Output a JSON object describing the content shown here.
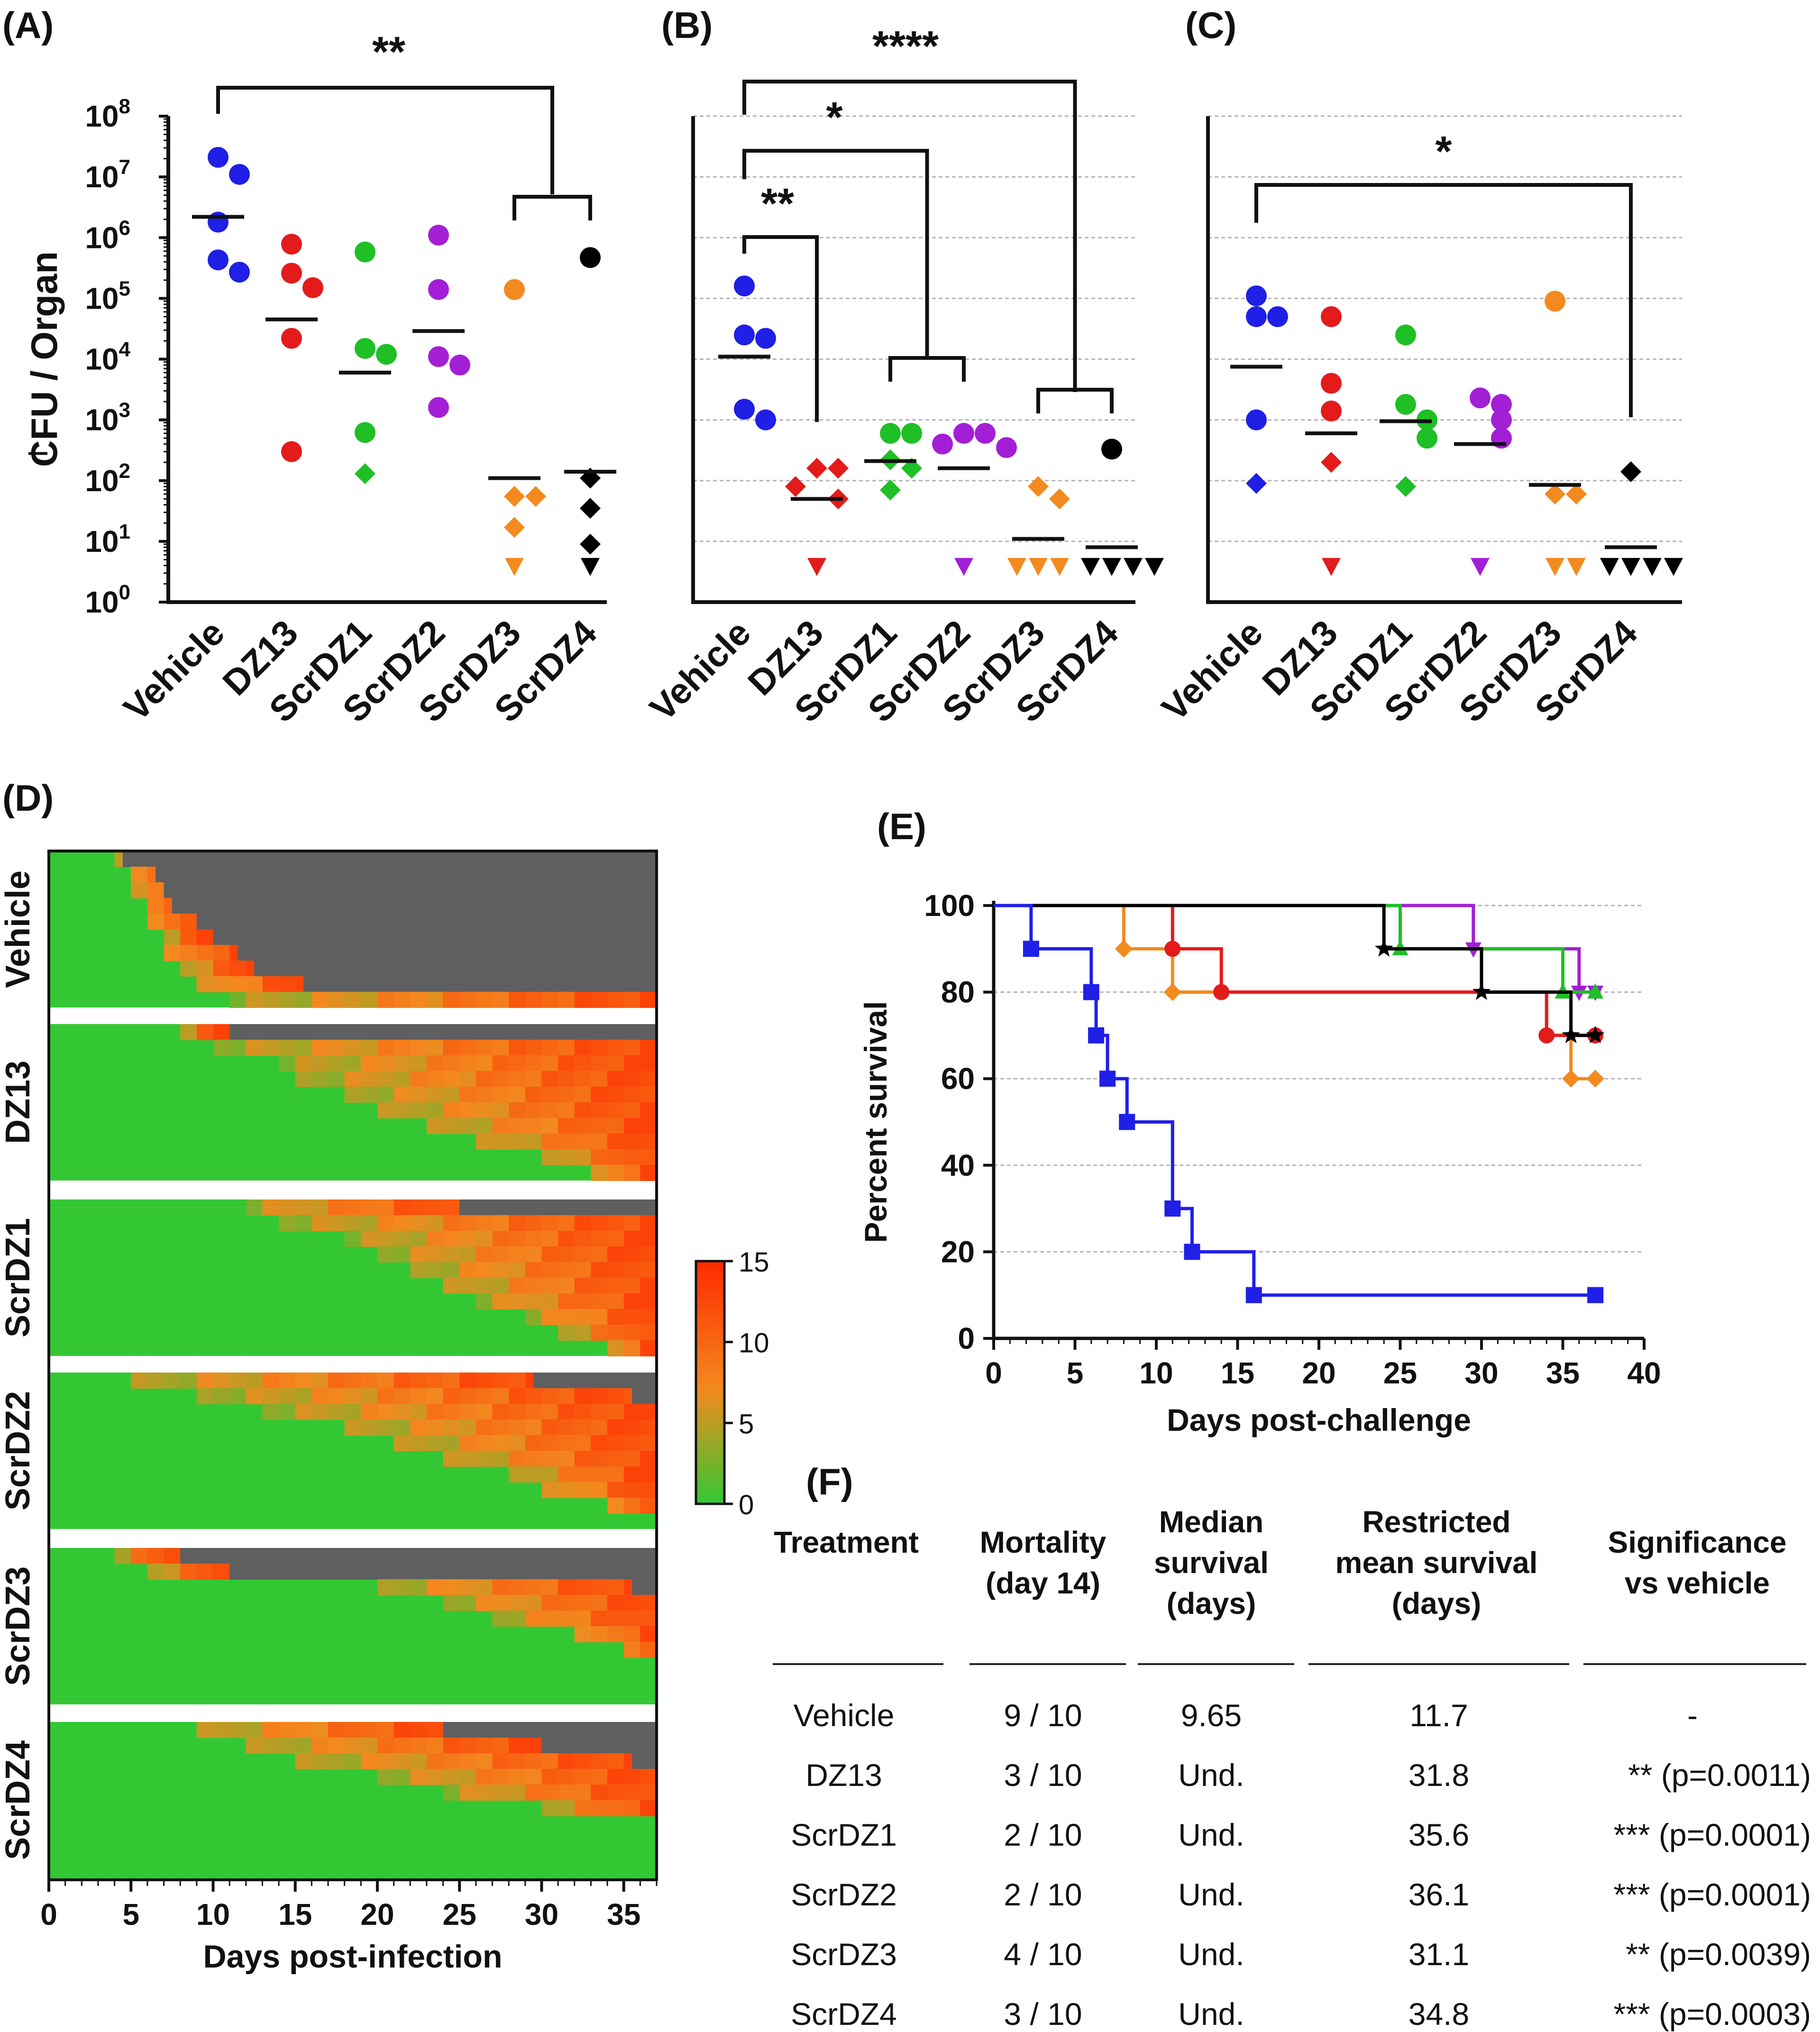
{
  "panel_labels": {
    "a": "(A)",
    "b": "(B)",
    "c": "(C)",
    "d": "(D)",
    "e": "(E)",
    "f": "(F)"
  },
  "colors": {
    "Vehicle": "#1f1fe6",
    "DZ13": "#e31b1b",
    "ScrDZ1": "#1fbf26",
    "ScrDZ2": "#a31fd6",
    "ScrDZ3": "#f28a1f",
    "ScrDZ4": "#000000",
    "heat_low": "#33c833",
    "heat_mid": "#f28a1f",
    "heat_high": "#ff2a00",
    "heat_dead": "#5f5f5f"
  },
  "chart_data": [
    {
      "id": "A",
      "type": "scatter",
      "yscale": "log",
      "ylabel": "CFU / Organ",
      "ylim": [
        1,
        100000000
      ],
      "yticks": [
        "10^0",
        "10^1",
        "10^2",
        "10^3",
        "10^4",
        "10^5",
        "10^6",
        "10^7",
        "10^8"
      ],
      "lod": 280,
      "categories": [
        "Vehicle",
        "DZ13",
        "ScrDZ1",
        "ScrDZ2",
        "ScrDZ3",
        "ScrDZ4"
      ],
      "groups": [
        {
          "name": "Vehicle",
          "mean": 2200000,
          "points": [
            {
              "v": 21000000,
              "m": "circle"
            },
            {
              "v": 11000000,
              "m": "circle"
            },
            {
              "v": 1800000,
              "m": "circle"
            },
            {
              "v": 430000,
              "m": "circle"
            },
            {
              "v": 270000,
              "m": "circle"
            }
          ]
        },
        {
          "name": "DZ13",
          "mean": 45000,
          "points": [
            {
              "v": 780000,
              "m": "circle"
            },
            {
              "v": 260000,
              "m": "circle"
            },
            {
              "v": 150000,
              "m": "circle"
            },
            {
              "v": 22000,
              "m": "circle"
            },
            {
              "v": 300,
              "m": "circle"
            }
          ]
        },
        {
          "name": "ScrDZ1",
          "mean": 6000,
          "points": [
            {
              "v": 580000,
              "m": "circle"
            },
            {
              "v": 15000,
              "m": "circle"
            },
            {
              "v": 12000,
              "m": "circle"
            },
            {
              "v": 620,
              "m": "circle"
            },
            {
              "v": 130,
              "m": "diamond"
            }
          ]
        },
        {
          "name": "ScrDZ2",
          "mean": 29000,
          "points": [
            {
              "v": 1100000,
              "m": "circle"
            },
            {
              "v": 140000,
              "m": "circle"
            },
            {
              "v": 11000,
              "m": "circle"
            },
            {
              "v": 8000,
              "m": "circle"
            },
            {
              "v": 1600,
              "m": "circle"
            }
          ]
        },
        {
          "name": "ScrDZ3",
          "mean": 110,
          "points": [
            {
              "v": 140000,
              "m": "circle"
            },
            {
              "v": 55,
              "m": "diamond"
            },
            {
              "v": 55,
              "m": "diamond"
            },
            {
              "v": 17,
              "m": "diamond"
            },
            {
              "v": 4,
              "m": "triangle"
            }
          ]
        },
        {
          "name": "ScrDZ4",
          "mean": 140,
          "points": [
            {
              "v": 470000,
              "m": "circle"
            },
            {
              "v": 110,
              "m": "diamond"
            },
            {
              "v": 35,
              "m": "diamond"
            },
            {
              "v": 9,
              "m": "diamond"
            },
            {
              "v": 4,
              "m": "triangle"
            }
          ]
        }
      ],
      "brackets": [
        {
          "from": 0,
          "to": 4.5,
          "label": "**"
        },
        {
          "from": 4,
          "to": 5,
          "label": ""
        }
      ]
    },
    {
      "id": "B",
      "type": "scatter",
      "yscale": "log",
      "ylim": [
        1,
        100000000
      ],
      "categories": [
        "Vehicle",
        "DZ13",
        "ScrDZ1",
        "ScrDZ2",
        "ScrDZ3",
        "ScrDZ4"
      ],
      "groups": [
        {
          "name": "Vehicle",
          "mean": 11000,
          "points": [
            {
              "v": 160000,
              "m": "circle"
            },
            {
              "v": 25000,
              "m": "circle"
            },
            {
              "v": 22000,
              "m": "circle"
            },
            {
              "v": 1500,
              "m": "circle"
            },
            {
              "v": 1000,
              "m": "circle"
            }
          ]
        },
        {
          "name": "DZ13",
          "mean": 50,
          "points": [
            {
              "v": 160,
              "m": "diamond"
            },
            {
              "v": 160,
              "m": "diamond"
            },
            {
              "v": 80,
              "m": "diamond"
            },
            {
              "v": 50,
              "m": "diamond"
            },
            {
              "v": 4,
              "m": "triangle"
            }
          ]
        },
        {
          "name": "ScrDZ1",
          "mean": 210,
          "points": [
            {
              "v": 600,
              "m": "circle"
            },
            {
              "v": 600,
              "m": "circle"
            },
            {
              "v": 220,
              "m": "diamond"
            },
            {
              "v": 160,
              "m": "diamond"
            },
            {
              "v": 70,
              "m": "diamond"
            }
          ]
        },
        {
          "name": "ScrDZ2",
          "mean": 160,
          "points": [
            {
              "v": 600,
              "m": "circle"
            },
            {
              "v": 600,
              "m": "circle"
            },
            {
              "v": 400,
              "m": "circle"
            },
            {
              "v": 350,
              "m": "circle"
            },
            {
              "v": 4,
              "m": "triangle"
            }
          ]
        },
        {
          "name": "ScrDZ3",
          "mean": 11,
          "points": [
            {
              "v": 80,
              "m": "diamond"
            },
            {
              "v": 50,
              "m": "diamond"
            },
            {
              "v": 4,
              "m": "triangle"
            },
            {
              "v": 4,
              "m": "triangle"
            },
            {
              "v": 4,
              "m": "triangle"
            }
          ]
        },
        {
          "name": "ScrDZ4",
          "mean": 8,
          "points": [
            {
              "v": 330,
              "m": "circle"
            },
            {
              "v": 4,
              "m": "triangle"
            },
            {
              "v": 4,
              "m": "triangle"
            },
            {
              "v": 4,
              "m": "triangle"
            },
            {
              "v": 4,
              "m": "triangle"
            }
          ]
        }
      ],
      "brackets": [
        {
          "from": 0,
          "to": 1,
          "label": "**"
        },
        {
          "from": 0,
          "to": 2.5,
          "label": "*"
        },
        {
          "from": 0,
          "to": 4.5,
          "label": "****"
        },
        {
          "from": 2,
          "to": 3,
          "label": ""
        },
        {
          "from": 4,
          "to": 5,
          "label": ""
        }
      ]
    },
    {
      "id": "C",
      "type": "scatter",
      "yscale": "log",
      "ylim": [
        1,
        100000000
      ],
      "categories": [
        "Vehicle",
        "DZ13",
        "ScrDZ1",
        "ScrDZ2",
        "ScrDZ3",
        "ScrDZ4"
      ],
      "groups": [
        {
          "name": "Vehicle",
          "mean": 7500,
          "points": [
            {
              "v": 110000,
              "m": "circle"
            },
            {
              "v": 50000,
              "m": "circle"
            },
            {
              "v": 50000,
              "m": "circle"
            },
            {
              "v": 1000,
              "m": "circle"
            },
            {
              "v": 90,
              "m": "diamond"
            }
          ]
        },
        {
          "name": "DZ13",
          "mean": 600,
          "points": [
            {
              "v": 50000,
              "m": "circle"
            },
            {
              "v": 4000,
              "m": "circle"
            },
            {
              "v": 1400,
              "m": "circle"
            },
            {
              "v": 200,
              "m": "diamond"
            },
            {
              "v": 4,
              "m": "triangle"
            }
          ]
        },
        {
          "name": "ScrDZ1",
          "mean": 950,
          "points": [
            {
              "v": 25000,
              "m": "circle"
            },
            {
              "v": 1800,
              "m": "circle"
            },
            {
              "v": 1000,
              "m": "circle"
            },
            {
              "v": 500,
              "m": "circle"
            },
            {
              "v": 80,
              "m": "diamond"
            }
          ]
        },
        {
          "name": "ScrDZ2",
          "mean": 400,
          "points": [
            {
              "v": 2300,
              "m": "circle"
            },
            {
              "v": 1800,
              "m": "circle"
            },
            {
              "v": 1000,
              "m": "circle"
            },
            {
              "v": 500,
              "m": "circle"
            },
            {
              "v": 4,
              "m": "triangle"
            }
          ]
        },
        {
          "name": "ScrDZ3",
          "mean": 85,
          "points": [
            {
              "v": 90000,
              "m": "circle"
            },
            {
              "v": 60,
              "m": "diamond"
            },
            {
              "v": 60,
              "m": "diamond"
            },
            {
              "v": 4,
              "m": "triangle"
            },
            {
              "v": 4,
              "m": "triangle"
            }
          ]
        },
        {
          "name": "ScrDZ4",
          "mean": 8,
          "points": [
            {
              "v": 140,
              "m": "diamond"
            },
            {
              "v": 4,
              "m": "triangle"
            },
            {
              "v": 4,
              "m": "triangle"
            },
            {
              "v": 4,
              "m": "triangle"
            },
            {
              "v": 4,
              "m": "triangle"
            }
          ]
        }
      ],
      "brackets": [
        {
          "from": 0,
          "to": 5,
          "label": "*"
        }
      ]
    },
    {
      "id": "D",
      "type": "heatmap",
      "xlabel": "Days post-infection",
      "xticks": [
        0,
        5,
        10,
        15,
        20,
        25,
        30,
        35
      ],
      "xlim": [
        0,
        37
      ],
      "colorbar": {
        "min": 0,
        "max": 15,
        "ticks": [
          0,
          5,
          10,
          15
        ]
      },
      "groups": [
        {
          "name": "Vehicle",
          "onset_days": [
            4,
            5,
            5,
            6,
            6,
            7,
            7,
            8,
            9,
            11
          ],
          "death_days": [
            4.5,
            6.5,
            7,
            7.5,
            9,
            10,
            11.5,
            12.5,
            15.5,
            null
          ]
        },
        {
          "name": "DZ13",
          "onset_days": [
            8,
            10,
            14,
            15,
            18,
            20,
            23,
            26,
            30,
            33
          ],
          "death_days": [
            11,
            null,
            null,
            null,
            null,
            null,
            null,
            null,
            null,
            null
          ]
        },
        {
          "name": "ScrDZ1",
          "onset_days": [
            12,
            14,
            18,
            20,
            22,
            24,
            26,
            29,
            31,
            34
          ],
          "death_days": [
            25,
            null,
            null,
            null,
            null,
            null,
            null,
            null,
            null,
            null
          ]
        },
        {
          "name": "ScrDZ2",
          "onset_days": [
            5,
            9,
            13,
            18,
            21,
            24,
            28,
            30,
            34,
            37
          ],
          "death_days": [
            29.5,
            35.5,
            null,
            null,
            null,
            null,
            null,
            null,
            null,
            null
          ]
        },
        {
          "name": "ScrDZ3",
          "onset_days": [
            4,
            6,
            20,
            24,
            27,
            32,
            35,
            37,
            37,
            37
          ],
          "death_days": [
            8,
            11,
            35.5,
            37,
            null,
            null,
            null,
            null,
            null,
            null
          ]
        },
        {
          "name": "ScrDZ4",
          "onset_days": [
            9,
            12,
            15,
            20,
            24,
            30,
            37,
            37,
            37,
            37
          ],
          "death_days": [
            24,
            30,
            35.5,
            null,
            null,
            null,
            null,
            null,
            null,
            null
          ]
        }
      ]
    },
    {
      "id": "E",
      "type": "line",
      "subtype": "kaplan-meier",
      "xlabel": "Days post-challenge",
      "ylabel": "Percent survival",
      "xlim": [
        0,
        40
      ],
      "ylim": [
        0,
        100
      ],
      "xticks": [
        0,
        5,
        10,
        15,
        20,
        25,
        30,
        35,
        40
      ],
      "yticks": [
        0,
        20,
        40,
        60,
        80,
        100
      ],
      "series": [
        {
          "name": "Vehicle",
          "marker": "square",
          "steps": [
            [
              0,
              100
            ],
            [
              2.3,
              90
            ],
            [
              6,
              80
            ],
            [
              6.3,
              70
            ],
            [
              7,
              60
            ],
            [
              8.2,
              50
            ],
            [
              11,
              30
            ],
            [
              12.2,
              20
            ],
            [
              16,
              10
            ],
            [
              37,
              10
            ]
          ]
        },
        {
          "name": "DZ13",
          "marker": "circle",
          "steps": [
            [
              0,
              100
            ],
            [
              11,
              90
            ],
            [
              14,
              80
            ],
            [
              34,
              70
            ],
            [
              37,
              70
            ]
          ]
        },
        {
          "name": "ScrDZ1",
          "marker": "triangle",
          "steps": [
            [
              0,
              100
            ],
            [
              25,
              90
            ],
            [
              35,
              80
            ],
            [
              37,
              80
            ]
          ]
        },
        {
          "name": "ScrDZ2",
          "marker": "triangle-down",
          "steps": [
            [
              0,
              100
            ],
            [
              29.5,
              90
            ],
            [
              36,
              80
            ],
            [
              37,
              80
            ]
          ]
        },
        {
          "name": "ScrDZ3",
          "marker": "diamond",
          "steps": [
            [
              0,
              100
            ],
            [
              8,
              90
            ],
            [
              11,
              80
            ],
            [
              35.5,
              60
            ],
            [
              37,
              60
            ]
          ]
        },
        {
          "name": "ScrDZ4",
          "marker": "star",
          "steps": [
            [
              0,
              100
            ],
            [
              24,
              90
            ],
            [
              30,
              80
            ],
            [
              35.5,
              70
            ],
            [
              37,
              70
            ]
          ]
        }
      ]
    }
  ],
  "table": {
    "headers": [
      "Treatment",
      "Mortality\n(day 14)",
      "Median\nsurvival\n(days)",
      "Restricted\nmean survival\n(days)",
      "Significance\nvs vehicle"
    ],
    "rows": [
      [
        "Vehicle",
        "9 / 10",
        "9.65",
        "11.7",
        "-"
      ],
      [
        "DZ13",
        "3 / 10",
        "Und.",
        "31.8",
        "** (p=0.0011)"
      ],
      [
        "ScrDZ1",
        "2 / 10",
        "Und.",
        "35.6",
        "*** (p=0.0001)"
      ],
      [
        "ScrDZ2",
        "2 / 10",
        "Und.",
        "36.1",
        "*** (p=0.0001)"
      ],
      [
        "ScrDZ3",
        "4 / 10",
        "Und.",
        "31.1",
        "** (p=0.0039)"
      ],
      [
        "ScrDZ4",
        "3 / 10",
        "Und.",
        "34.8",
        "*** (p=0.0003)"
      ]
    ]
  }
}
